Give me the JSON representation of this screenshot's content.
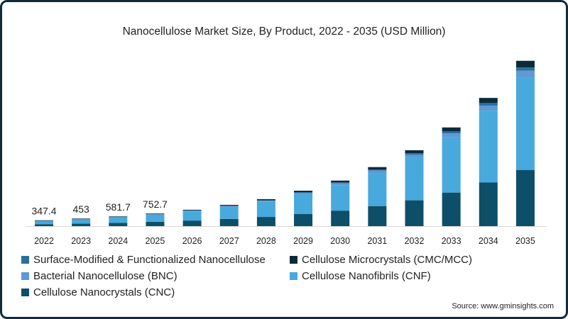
{
  "chart_data": {
    "type": "bar",
    "stacked": true,
    "title": "Nanocellulose Market Size, By Product, 2022 - 2035 (USD Million)",
    "xlabel": "",
    "ylabel": "",
    "ylim": [
      0,
      10000
    ],
    "grid": false,
    "legend_placement": "bottom",
    "categories": [
      "2022",
      "2023",
      "2024",
      "2025",
      "2026",
      "2027",
      "2028",
      "2029",
      "2030",
      "2031",
      "2032",
      "2033",
      "2034",
      "2035"
    ],
    "totals_labels": [
      "347.4",
      "453",
      "581.7",
      "752.7"
    ],
    "series": [
      {
        "name": "Cellulose Nanocrystals (CNC)",
        "color": "#0d4e69",
        "values": [
          118.1,
          154.0,
          197.8,
          255.9,
          329.8,
          428.4,
          544,
          714,
          918,
          1190,
          1530,
          1989,
          2584,
          3332
        ]
      },
      {
        "name": "Cellulose Nanofibrils (CNF)",
        "color": "#48a9dc",
        "values": [
          194.6,
          253.7,
          325.7,
          421.5,
          543.2,
          705.6,
          896,
          1176,
          1512,
          1960,
          2520,
          3276,
          4256,
          5488
        ]
      },
      {
        "name": "Bacterial Nanocellulose (BNC)",
        "color": "#5d9ad6",
        "values": [
          13.9,
          18.1,
          23.3,
          30.1,
          38.8,
          50.4,
          64,
          84,
          108,
          140,
          180,
          234,
          304,
          392
        ]
      },
      {
        "name": "Surface-Modified & Functionalized Nanocellulose",
        "color": "#2a6f9e",
        "values": [
          6.9,
          9.1,
          11.6,
          15.1,
          19.4,
          25.2,
          32,
          42,
          54,
          70,
          90,
          117,
          152,
          196
        ]
      },
      {
        "name": "Cellulose Microcrystals (CMC/MCC)",
        "color": "#0b2b3b",
        "values": [
          13.9,
          18.1,
          23.3,
          30.1,
          38.8,
          50.4,
          64,
          84,
          108,
          140,
          180,
          234,
          304,
          392
        ]
      }
    ],
    "legend_order": [
      3,
      4,
      2,
      1,
      0
    ]
  },
  "source": "Source: www.gminsights.com"
}
